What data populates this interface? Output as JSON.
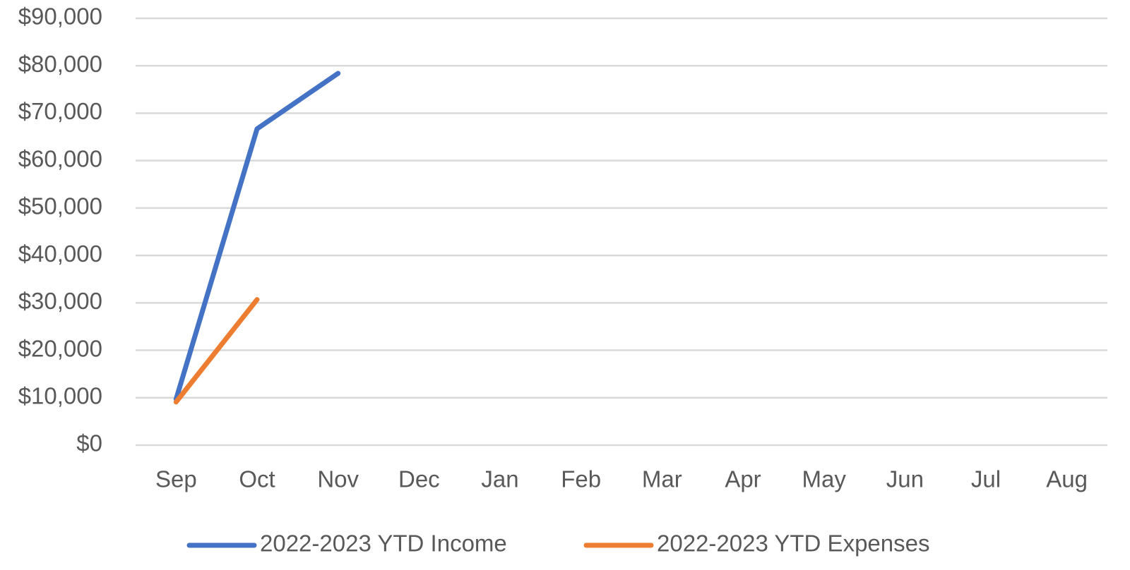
{
  "chart_data": {
    "type": "line",
    "categories": [
      "Sep",
      "Oct",
      "Nov",
      "Dec",
      "Jan",
      "Feb",
      "Mar",
      "Apr",
      "May",
      "Jun",
      "Jul",
      "Aug"
    ],
    "series": [
      {
        "name": "2022-2023 YTD Income",
        "color": "#4472c4",
        "values": [
          9700,
          66700,
          78400,
          null,
          null,
          null,
          null,
          null,
          null,
          null,
          null,
          null
        ]
      },
      {
        "name": "2022-2023 YTD Expenses",
        "color": "#ed7d31",
        "values": [
          9100,
          30700,
          null,
          null,
          null,
          null,
          null,
          null,
          null,
          null,
          null,
          null
        ]
      }
    ],
    "ylim": [
      0,
      90000
    ],
    "yticks": [
      {
        "value": 0,
        "label": "$0"
      },
      {
        "value": 10000,
        "label": "$10,000"
      },
      {
        "value": 20000,
        "label": "$20,000"
      },
      {
        "value": 30000,
        "label": "$30,000"
      },
      {
        "value": 40000,
        "label": "$40,000"
      },
      {
        "value": 50000,
        "label": "$50,000"
      },
      {
        "value": 60000,
        "label": "$60,000"
      },
      {
        "value": 70000,
        "label": "$70,000"
      },
      {
        "value": 80000,
        "label": "$80,000"
      },
      {
        "value": 90000,
        "label": "$90,000"
      }
    ],
    "grid": true,
    "legend": "bottom"
  }
}
